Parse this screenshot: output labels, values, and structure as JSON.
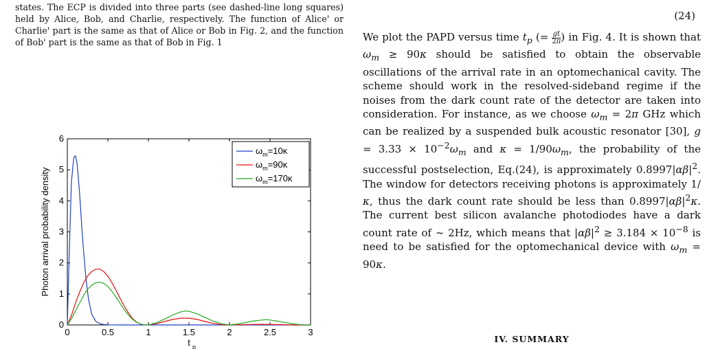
{
  "caption_tail": "states. The ECP is divided into three parts (see dashed-line long squares) held by Alice, Bob, and Charlie, respectively. The function of Alice' or Charlie' part is the same as that of Alice or Bob in Fig. 2, and the function of Bob' part is the same as that of Bob in Fig. 1",
  "equation_number": "(24)",
  "paragraph": {
    "p1_a": "We plot the PAPD versus time ",
    "p1_b": " in Fig. 4. It is shown that ",
    "p1_c": " should be satisfied to obtain the observable oscillations of the arrival rate in an optomechanical cavity. The scheme should work in the resolved-sideband regime if the noises from the dark count rate of the detector are taken into consideration. For instance, as we choose ",
    "p1_d": " GHz which can be realized by a suspended bulk acoustic resonator [30], ",
    "p1_e": " and ",
    "p1_f": ", the probability of the successful postselection, Eq.(24), is approximately ",
    "p1_g": ". The window for detectors receiving photons is approximately ",
    "p1_h": ", thus the dark count rate should be less than ",
    "p1_i": ". The current best silicon avalanche photodiodes have a dark count rate of ",
    "p1_j": " 2Hz, which means that ",
    "p1_k": " is need to be satisfied for the optomechanical device with ",
    "p1_l": "."
  },
  "section_title": "IV. SUMMARY",
  "chart_data": {
    "type": "line",
    "xlabel": "t",
    "xlabel_sub": "p",
    "ylabel": "Photon arrival probability density",
    "xlim": [
      0,
      3
    ],
    "ylim": [
      0,
      6
    ],
    "xticks": [
      "0",
      "0.5",
      "1",
      "1.5",
      "2",
      "2.5",
      "3"
    ],
    "yticks": [
      "0",
      "1",
      "2",
      "3",
      "4",
      "5",
      "6"
    ],
    "legend_placement": "top-right",
    "series": [
      {
        "name": "ω",
        "sub": "m",
        "suffix": "=10κ",
        "color": "#1f3fbf",
        "x": [
          0,
          0.02,
          0.05,
          0.08,
          0.1,
          0.12,
          0.15,
          0.18,
          0.2,
          0.23,
          0.26,
          0.3,
          0.35,
          0.4,
          0.45,
          0.5,
          0.6,
          0.8,
          1.0,
          1.5,
          2.0,
          2.5,
          3.0
        ],
        "y": [
          0,
          2.0,
          4.6,
          5.4,
          5.45,
          5.2,
          4.3,
          3.1,
          2.4,
          1.5,
          0.85,
          0.35,
          0.12,
          0.04,
          0.015,
          0.005,
          0,
          0,
          0,
          0,
          0,
          0,
          0
        ]
      },
      {
        "name": "ω",
        "sub": "m",
        "suffix": "=90κ",
        "color": "#e01010",
        "x": [
          0,
          0.05,
          0.1,
          0.15,
          0.2,
          0.25,
          0.3,
          0.35,
          0.4,
          0.45,
          0.5,
          0.55,
          0.6,
          0.65,
          0.7,
          0.75,
          0.8,
          0.85,
          0.9,
          0.95,
          1.0,
          1.1,
          1.2,
          1.3,
          1.4,
          1.5,
          1.6,
          1.7,
          1.8,
          1.9,
          2.0,
          2.2,
          2.4,
          2.6,
          2.8,
          3.0
        ],
        "y": [
          0,
          0.3,
          0.7,
          1.05,
          1.35,
          1.58,
          1.72,
          1.8,
          1.8,
          1.72,
          1.57,
          1.36,
          1.12,
          0.86,
          0.62,
          0.4,
          0.22,
          0.1,
          0.03,
          0.005,
          0,
          0.04,
          0.11,
          0.18,
          0.22,
          0.22,
          0.18,
          0.11,
          0.05,
          0.01,
          0,
          0.01,
          0.02,
          0.01,
          0,
          0
        ]
      },
      {
        "name": "ω",
        "sub": "m",
        "suffix": "=170κ",
        "color": "#22aa22",
        "x": [
          0,
          0.05,
          0.1,
          0.15,
          0.2,
          0.25,
          0.3,
          0.35,
          0.4,
          0.45,
          0.5,
          0.55,
          0.6,
          0.65,
          0.7,
          0.75,
          0.8,
          0.85,
          0.9,
          0.95,
          1.0,
          1.1,
          1.2,
          1.3,
          1.4,
          1.45,
          1.5,
          1.6,
          1.7,
          1.8,
          1.9,
          2.0,
          2.1,
          2.2,
          2.3,
          2.4,
          2.45,
          2.5,
          2.6,
          2.7,
          2.8,
          2.9,
          3.0
        ],
        "y": [
          0,
          0.2,
          0.45,
          0.7,
          0.95,
          1.15,
          1.28,
          1.36,
          1.38,
          1.34,
          1.24,
          1.08,
          0.9,
          0.7,
          0.5,
          0.33,
          0.19,
          0.09,
          0.03,
          0.005,
          0,
          0.07,
          0.19,
          0.32,
          0.42,
          0.45,
          0.44,
          0.36,
          0.24,
          0.12,
          0.04,
          0,
          0.03,
          0.08,
          0.13,
          0.16,
          0.17,
          0.16,
          0.12,
          0.07,
          0.03,
          0.005,
          0
        ]
      }
    ]
  }
}
